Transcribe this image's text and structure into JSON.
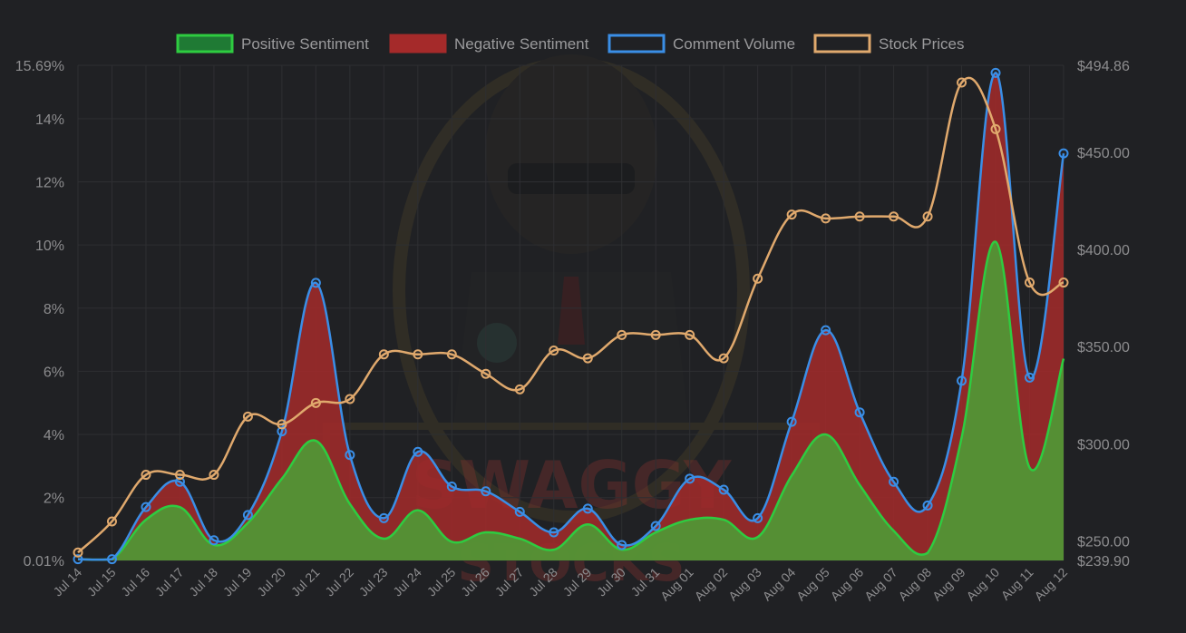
{
  "chart_data": {
    "type": "line",
    "categories": [
      "Jul 14",
      "Jul 15",
      "Jul 16",
      "Jul 17",
      "Jul 18",
      "Jul 19",
      "Jul 20",
      "Jul 21",
      "Jul 22",
      "Jul 23",
      "Jul 24",
      "Jul 25",
      "Jul 26",
      "Jul 27",
      "Jul 28",
      "Jul 29",
      "Jul 30",
      "Jul 31",
      "Aug 01",
      "Aug 02",
      "Aug 03",
      "Aug 04",
      "Aug 05",
      "Aug 06",
      "Aug 07",
      "Aug 08",
      "Aug 09",
      "Aug 10",
      "Aug 11",
      "Aug 12"
    ],
    "left_axis": {
      "ticks": [
        "0.01%",
        "2%",
        "4%",
        "6%",
        "8%",
        "10%",
        "12%",
        "14%",
        "15.69%"
      ],
      "tick_values": [
        0.01,
        2,
        4,
        6,
        8,
        10,
        12,
        14,
        15.69
      ],
      "ylim": [
        0.01,
        15.69
      ]
    },
    "right_axis": {
      "ticks": [
        "$239.90",
        "$250.00",
        "$300.00",
        "$350.00",
        "$400.00",
        "$450.00",
        "$494.86"
      ],
      "tick_values": [
        239.9,
        250,
        300,
        350,
        400,
        450,
        494.86
      ],
      "ylim": [
        239.9,
        494.86
      ]
    },
    "series": [
      {
        "name": "Positive Sentiment",
        "axis": "left",
        "kind": "area",
        "color": "#2ecc40",
        "values": [
          0.05,
          0.05,
          1.3,
          1.7,
          0.5,
          1.2,
          2.6,
          3.8,
          1.8,
          0.7,
          1.6,
          0.6,
          0.9,
          0.7,
          0.35,
          1.15,
          0.35,
          0.9,
          1.3,
          1.3,
          0.75,
          2.7,
          4.0,
          2.4,
          0.95,
          0.25,
          3.9,
          10.1,
          2.95,
          6.4
        ]
      },
      {
        "name": "Negative Sentiment",
        "axis": "left",
        "kind": "area",
        "color": "#a52a2a",
        "values": [
          0.0,
          0.0,
          0.4,
          0.8,
          0.1,
          0.25,
          1.5,
          5.0,
          1.55,
          0.65,
          1.85,
          1.75,
          1.3,
          0.85,
          0.55,
          0.5,
          0.15,
          0.2,
          1.3,
          0.95,
          0.6,
          1.7,
          3.3,
          2.3,
          1.55,
          1.5,
          1.8,
          5.35,
          2.85,
          6.5
        ]
      },
      {
        "name": "Comment Volume",
        "axis": "left",
        "kind": "line",
        "color": "#3a8ee6",
        "values": [
          0.05,
          0.05,
          1.7,
          2.5,
          0.65,
          1.45,
          4.1,
          8.8,
          3.35,
          1.35,
          3.45,
          2.35,
          2.2,
          1.55,
          0.9,
          1.65,
          0.5,
          1.1,
          2.6,
          2.25,
          1.35,
          4.4,
          7.3,
          4.7,
          2.5,
          1.75,
          5.7,
          15.45,
          5.8,
          12.9
        ]
      },
      {
        "name": "Stock Prices",
        "axis": "right",
        "kind": "line",
        "color": "#e0a96d",
        "values": [
          244,
          260,
          284,
          284,
          284,
          314,
          310,
          321,
          323,
          346,
          346,
          346,
          336,
          328,
          348,
          344,
          356,
          356,
          356,
          344,
          385,
          418,
          416,
          417,
          417,
          417,
          486,
          462,
          383,
          383
        ]
      }
    ],
    "legend": {
      "position": "top"
    },
    "grid": true
  },
  "watermark": {
    "line1": "SWAGGY",
    "line2": "STOCKS"
  }
}
